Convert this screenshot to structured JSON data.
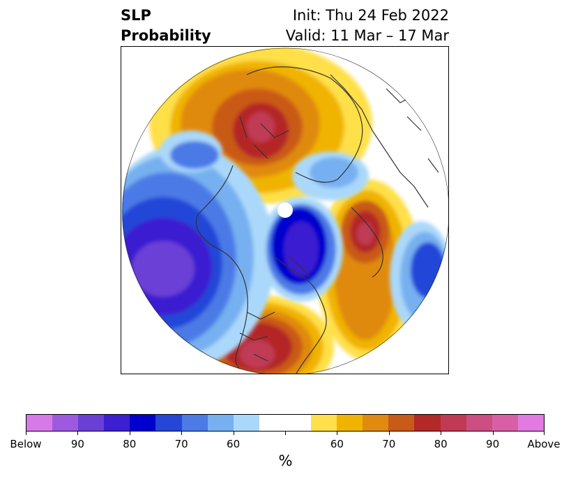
{
  "title": {
    "left_line1": "SLP",
    "left_line2": "Probability",
    "right_line1": "Init: Thu 24 Feb 2022",
    "right_line2": "Valid: 11 Mar – 17 Mar"
  },
  "colorbar": {
    "label": "%",
    "colors": [
      "#d77ae8",
      "#9d5ae0",
      "#6a3fd6",
      "#3b1fd0",
      "#0000cc",
      "#2447d8",
      "#4c7ae6",
      "#76b0f0",
      "#aad8fa",
      "#ffffff",
      "#ffffff",
      "#ffe04a",
      "#f0b400",
      "#e08a10",
      "#c95a18",
      "#b42828",
      "#c03a55",
      "#cc4e82",
      "#d85fa6",
      "#e27ae2"
    ],
    "tick_labels": [
      "Below",
      "90",
      "80",
      "70",
      "60",
      "",
      "60",
      "70",
      "80",
      "90",
      "Above"
    ],
    "tick_segment_index": [
      0,
      2,
      4,
      6,
      8,
      10,
      12,
      14,
      16,
      18,
      20
    ]
  },
  "map": {
    "projection": "north-polar-stereographic",
    "colors": {
      "land_outline": "#333333",
      "white": "#ffffff",
      "yellow": "#ffe04a",
      "gold": "#f0b400",
      "orange": "#e08a10",
      "dark_orange": "#c95a18",
      "red": "#b42828",
      "crimson": "#c03a55",
      "pink": "#cc4e82",
      "light_blue": "#aad8fa",
      "sky_blue": "#76b0f0",
      "mid_blue": "#4c7ae6",
      "blue": "#2447d8",
      "deep_blue": "#0000cc",
      "indigo": "#3b1fd0",
      "violet": "#6a3fd6"
    }
  }
}
